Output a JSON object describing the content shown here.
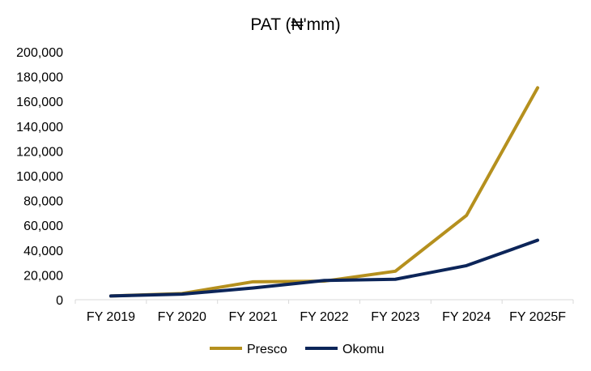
{
  "chart_data": {
    "type": "line",
    "title": "PAT (₦'mm)",
    "xlabel": "",
    "ylabel": "",
    "categories": [
      "FY 2019",
      "FY 2020",
      "FY 2021",
      "FY 2022",
      "FY 2023",
      "FY 2024",
      "FY 2025F"
    ],
    "ylim": [
      0,
      200000
    ],
    "yticks": [
      0,
      20000,
      40000,
      60000,
      80000,
      100000,
      120000,
      140000,
      160000,
      180000,
      200000
    ],
    "ytick_labels": [
      "0",
      "20,000",
      "40,000",
      "60,000",
      "80,000",
      "100,000",
      "120,000",
      "140,000",
      "160,000",
      "180,000",
      "200,000"
    ],
    "grid": false,
    "legend_position": "bottom",
    "series": [
      {
        "name": "Presco",
        "color": "#B5901E",
        "values": [
          3000,
          5000,
          14500,
          15000,
          23000,
          68000,
          171000
        ]
      },
      {
        "name": "Okomu",
        "color": "#0C2559",
        "values": [
          3000,
          4500,
          9500,
          15500,
          16500,
          27500,
          48000
        ]
      }
    ]
  }
}
